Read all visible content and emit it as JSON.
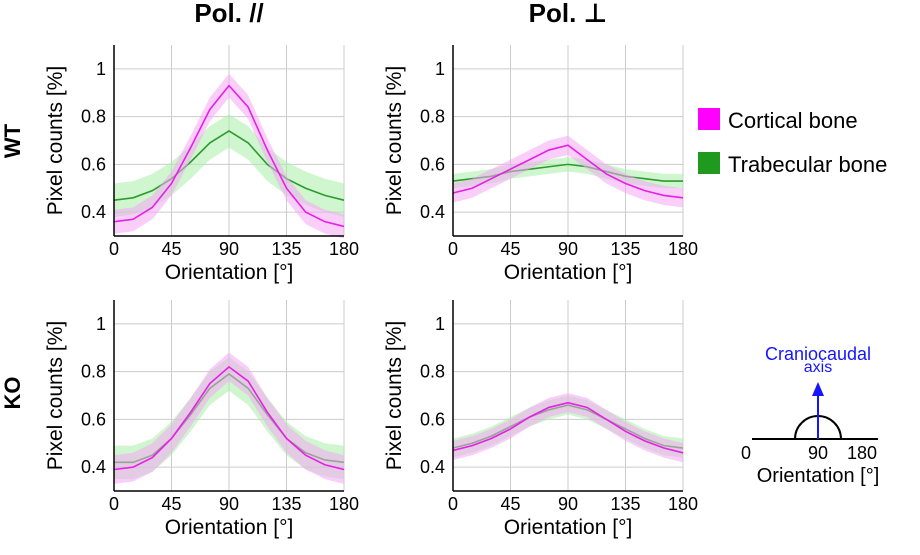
{
  "column_titles": [
    "Pol. //",
    "Pol. ⊥"
  ],
  "row_labels": [
    "WT",
    "KO"
  ],
  "legend": {
    "items": [
      {
        "label": "Cortical bone",
        "color": "#ff00ff"
      },
      {
        "label": "Trabecular bone",
        "color": "#1f9a1f"
      }
    ]
  },
  "inset": {
    "arrow_label_line1": "Craniocaudal",
    "arrow_label_line2": "axis",
    "ticks": [
      "0",
      "90",
      "180"
    ],
    "xlabel": "Orientation [°]",
    "arrow_color": "#1515ff"
  },
  "colors": {
    "cortical_line": "#e620e6",
    "cortical_band": "#f4a8f4",
    "trabecular_line": "#2e9b2e",
    "trabecular_band": "#a8eea8",
    "ko_trabecular_band": "#b8b8b8",
    "ko_trabecular_line": "#707070",
    "grid": "#cccccc"
  },
  "chart_data": [
    {
      "type": "line",
      "panel": "WT - Pol. //",
      "xlabel": "Orientation [°]",
      "ylabel": "Pixel counts [%]",
      "xlim": [
        0,
        180
      ],
      "ylim": [
        0.3,
        1.1
      ],
      "xticks": [
        0,
        45,
        90,
        135,
        180
      ],
      "yticks": [
        0.4,
        0.6,
        0.8,
        1
      ],
      "ytick_labels": [
        "0.4",
        "0.6",
        "0.8",
        "1"
      ],
      "x": [
        0,
        15,
        30,
        45,
        60,
        75,
        90,
        105,
        120,
        135,
        150,
        165,
        180
      ],
      "series": [
        {
          "name": "Cortical bone",
          "mean": [
            0.36,
            0.37,
            0.42,
            0.52,
            0.67,
            0.83,
            0.93,
            0.84,
            0.66,
            0.5,
            0.4,
            0.36,
            0.34
          ],
          "band": 0.05
        },
        {
          "name": "Trabecular bone",
          "mean": [
            0.45,
            0.46,
            0.49,
            0.54,
            0.61,
            0.69,
            0.74,
            0.69,
            0.6,
            0.54,
            0.5,
            0.47,
            0.45
          ],
          "band": 0.07
        }
      ]
    },
    {
      "type": "line",
      "panel": "WT - Pol. ⊥",
      "xlabel": "Orientation [°]",
      "ylabel": "Pixel counts [%]",
      "xlim": [
        0,
        180
      ],
      "ylim": [
        0.3,
        1.1
      ],
      "xticks": [
        0,
        45,
        90,
        135,
        180
      ],
      "yticks": [
        0.4,
        0.6,
        0.8,
        1
      ],
      "ytick_labels": [
        "0.4",
        "0.6",
        "0.8",
        "1"
      ],
      "x": [
        0,
        15,
        30,
        45,
        60,
        75,
        90,
        105,
        120,
        135,
        150,
        165,
        180
      ],
      "series": [
        {
          "name": "Cortical bone",
          "mean": [
            0.48,
            0.5,
            0.54,
            0.58,
            0.62,
            0.66,
            0.68,
            0.62,
            0.56,
            0.52,
            0.49,
            0.47,
            0.46
          ],
          "band": 0.04
        },
        {
          "name": "Trabecular bone",
          "mean": [
            0.53,
            0.54,
            0.55,
            0.57,
            0.58,
            0.59,
            0.6,
            0.59,
            0.57,
            0.55,
            0.54,
            0.53,
            0.53
          ],
          "band": 0.03
        }
      ]
    },
    {
      "type": "line",
      "panel": "KO - Pol. //",
      "xlabel": "Orientation [°]",
      "ylabel": "Pixel counts [%]",
      "xlim": [
        0,
        180
      ],
      "ylim": [
        0.3,
        1.1
      ],
      "xticks": [
        0,
        45,
        90,
        135,
        180
      ],
      "yticks": [
        0.4,
        0.6,
        0.8,
        1
      ],
      "ytick_labels": [
        "0.4",
        "0.6",
        "0.8",
        "1"
      ],
      "x": [
        0,
        15,
        30,
        45,
        60,
        75,
        90,
        105,
        120,
        135,
        150,
        165,
        180
      ],
      "series": [
        {
          "name": "Cortical bone",
          "mean": [
            0.39,
            0.4,
            0.44,
            0.52,
            0.63,
            0.75,
            0.82,
            0.76,
            0.63,
            0.52,
            0.45,
            0.41,
            0.39
          ],
          "band": 0.06
        },
        {
          "name": "Trabecular bone",
          "mean": [
            0.42,
            0.42,
            0.45,
            0.52,
            0.62,
            0.73,
            0.79,
            0.73,
            0.62,
            0.52,
            0.46,
            0.43,
            0.42
          ],
          "band": 0.07
        }
      ]
    },
    {
      "type": "line",
      "panel": "KO - Pol. ⊥",
      "xlabel": "Orientation [°]",
      "ylabel": "Pixel counts [%]",
      "xlim": [
        0,
        180
      ],
      "ylim": [
        0.3,
        1.1
      ],
      "xticks": [
        0,
        45,
        90,
        135,
        180
      ],
      "yticks": [
        0.4,
        0.6,
        0.8,
        1
      ],
      "ytick_labels": [
        "0.4",
        "0.6",
        "0.8",
        "1"
      ],
      "x": [
        0,
        15,
        30,
        45,
        60,
        75,
        90,
        105,
        120,
        135,
        150,
        165,
        180
      ],
      "series": [
        {
          "name": "Cortical bone",
          "mean": [
            0.47,
            0.49,
            0.52,
            0.56,
            0.61,
            0.65,
            0.67,
            0.65,
            0.6,
            0.55,
            0.51,
            0.48,
            0.46
          ],
          "band": 0.04
        },
        {
          "name": "Trabecular bone",
          "mean": [
            0.48,
            0.5,
            0.53,
            0.57,
            0.61,
            0.64,
            0.66,
            0.64,
            0.6,
            0.56,
            0.52,
            0.49,
            0.48
          ],
          "band": 0.04
        }
      ]
    }
  ]
}
